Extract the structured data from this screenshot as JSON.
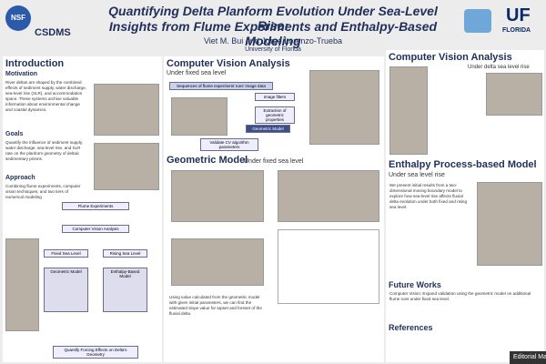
{
  "header": {
    "logo_nsf": "NSF",
    "logo_csdms": "CSDMS",
    "title_line1": "Quantifying Delta Planform Evolution Under Sea-Level Rise:",
    "title_line2": "Insights from Flume Experiments and Enthalpy-Based Modeling",
    "authors": "Viet M. Bui and Jorge Lorenzo-Trueba",
    "affiliation": "University of Florida",
    "logo_uf": "UF",
    "logo_florida": "FLORIDA"
  },
  "intro": {
    "heading": "Introduction",
    "motivation": "Motivation",
    "motivation_text": "River deltas are shaped by the combined effects of sediment supply, water discharge, sea-level rise (SLR), and accommodation space. These systems archive valuable information about environmental change and coastal dynamics.",
    "goals": "Goals",
    "goals_text": "Quantify the influence of sediment supply, water discharge, sea-level rise, and SLR rate on the planform geometry of deltaic sedimentary prisms.",
    "approach": "Approach",
    "approach_text": "Combining flume experiments, computer vision techniques, and two tiers of numerical modeling"
  },
  "flow": {
    "flume": "Flume Experiments",
    "cv": "Computer Vision Analysis",
    "fixed": "Fixed Sea Level",
    "rising": "Rising Sea Level",
    "geometric": "Geometric Model",
    "enthalpy": "Enthalpy-Based Model",
    "result": "Quantify Forcing Effects on Delta's Geometry"
  },
  "cv": {
    "heading": "Computer Vision Analysis",
    "sub": "Under fixed sea level",
    "box": "Sequences of flume experiment runs' image data",
    "step1": "Image filters",
    "step2": "Extraction of geometric properties",
    "step3": "Geometric Model",
    "validate": "Validate CV algorithm parameters"
  },
  "geo": {
    "heading": "Geometric Model",
    "sub": "Under fixed sea level",
    "text": "Using value calculated from the geometric model with given initial parameters, we can find the estimated slope value for topset and foreset of the fluvial delta."
  },
  "right": {
    "cv_heading": "Computer Vision Analysis",
    "cv_sub": "Under delta sea level rise",
    "enthalpy_heading": "Enthalpy Process-based Model",
    "enthalpy_sub": "Under sea level rise",
    "enthalpy_text": "We present initial results from a two-dimensional moving boundary model to explore how sea-level rise affects fluvial delta evolution under both fixed and rising sea level.",
    "future": "Future Works",
    "future_text": "Computer Vision: Expand validation using the geometric model on additional flume runs under fixed sea level.",
    "references": "References"
  },
  "tooltip": "Editorial Ma"
}
